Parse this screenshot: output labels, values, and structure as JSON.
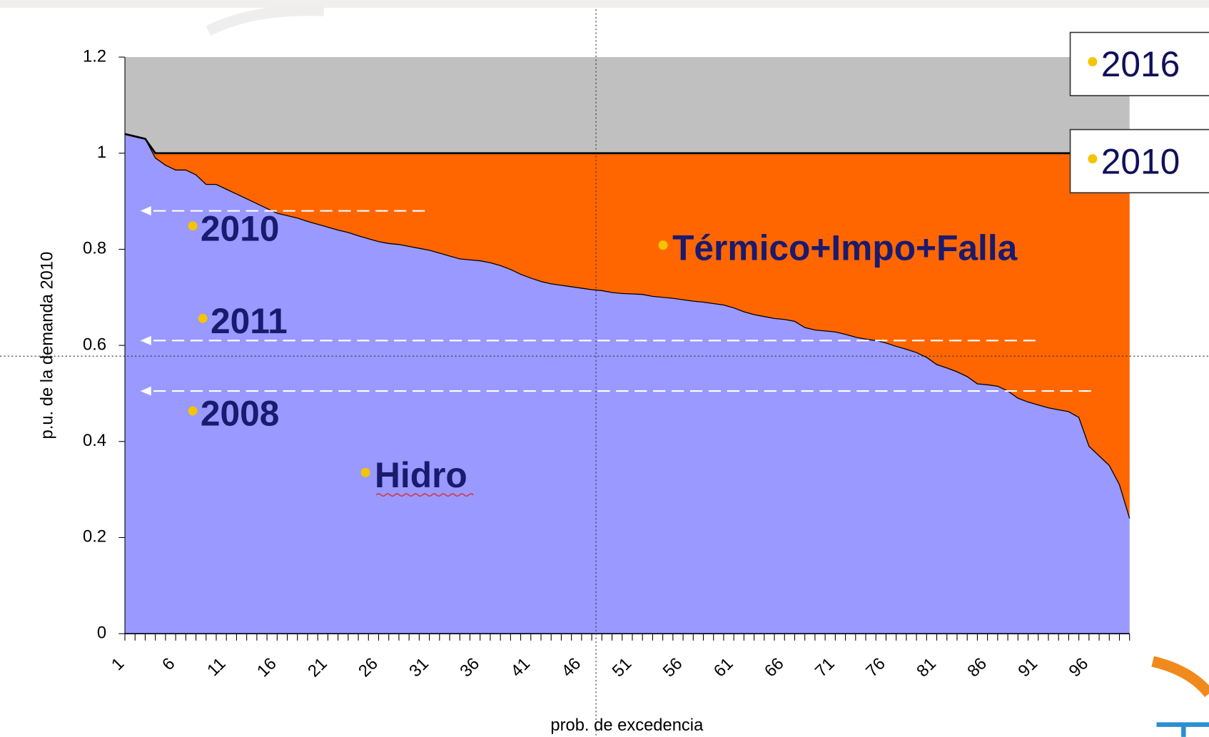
{
  "chart_data": {
    "type": "area",
    "y_label": "p.u. de la demanda 2010",
    "x_label": "prob. de excedencia",
    "categories": [
      1,
      null,
      null,
      null,
      null,
      6,
      null,
      null,
      null,
      null,
      11,
      null,
      null,
      null,
      null,
      16,
      null,
      null,
      null,
      null,
      21,
      null,
      null,
      null,
      null,
      26,
      null,
      null,
      null,
      null,
      31,
      null,
      null,
      null,
      null,
      36,
      null,
      null,
      null,
      null,
      41,
      null,
      null,
      null,
      null,
      46,
      null,
      null,
      null,
      null,
      51,
      null,
      null,
      null,
      null,
      56,
      null,
      null,
      null,
      null,
      61,
      null,
      null,
      null,
      null,
      66,
      null,
      null,
      null,
      null,
      71,
      null,
      null,
      null,
      null,
      76,
      null,
      null,
      null,
      null,
      81,
      null,
      null,
      null,
      null,
      86,
      null,
      null,
      null,
      null,
      91,
      null,
      null,
      null,
      null,
      96,
      null,
      null,
      null,
      null
    ],
    "series": [
      {
        "name": "Hidro",
        "color": "#9999ff",
        "values": [
          1.04,
          1.035,
          1.03,
          0.99,
          0.975,
          0.965,
          0.965,
          0.955,
          0.935,
          0.935,
          0.925,
          0.915,
          0.905,
          0.895,
          0.885,
          0.875,
          0.87,
          0.865,
          0.858,
          0.852,
          0.846,
          0.84,
          0.835,
          0.828,
          0.822,
          0.816,
          0.812,
          0.81,
          0.806,
          0.802,
          0.798,
          0.792,
          0.786,
          0.78,
          0.778,
          0.776,
          0.772,
          0.766,
          0.758,
          0.748,
          0.74,
          0.733,
          0.728,
          0.725,
          0.722,
          0.719,
          0.716,
          0.714,
          0.71,
          0.708,
          0.707,
          0.706,
          0.702,
          0.7,
          0.698,
          0.695,
          0.692,
          0.69,
          0.687,
          0.684,
          0.678,
          0.67,
          0.664,
          0.66,
          0.656,
          0.654,
          0.65,
          0.637,
          0.632,
          0.63,
          0.628,
          0.623,
          0.617,
          0.613,
          0.61,
          0.605,
          0.598,
          0.592,
          0.585,
          0.575,
          0.56,
          0.553,
          0.545,
          0.535,
          0.52,
          0.518,
          0.515,
          0.505,
          0.49,
          0.482,
          0.476,
          0.47,
          0.466,
          0.462,
          0.45,
          0.39,
          0.37,
          0.35,
          0.31,
          0.24
        ]
      },
      {
        "name": "Térmico+Impo+Falla",
        "color": "#ff6600",
        "values": [
          0,
          0,
          0,
          0.01,
          0.025,
          0.035,
          0.035,
          0.045,
          0.065,
          0.065,
          0.075,
          0.085,
          0.095,
          0.105,
          0.115,
          0.125,
          0.13,
          0.135,
          0.142,
          0.148,
          0.154,
          0.16,
          0.165,
          0.172,
          0.178,
          0.184,
          0.188,
          0.19,
          0.194,
          0.198,
          0.202,
          0.208,
          0.214,
          0.22,
          0.222,
          0.224,
          0.228,
          0.234,
          0.242,
          0.252,
          0.26,
          0.267,
          0.272,
          0.275,
          0.278,
          0.281,
          0.284,
          0.286,
          0.29,
          0.292,
          0.293,
          0.294,
          0.298,
          0.3,
          0.302,
          0.305,
          0.308,
          0.31,
          0.313,
          0.316,
          0.322,
          0.33,
          0.336,
          0.34,
          0.344,
          0.346,
          0.35,
          0.363,
          0.368,
          0.37,
          0.372,
          0.377,
          0.383,
          0.387,
          0.39,
          0.395,
          0.402,
          0.408,
          0.415,
          0.425,
          0.44,
          0.447,
          0.455,
          0.465,
          0.48,
          0.482,
          0.485,
          0.495,
          0.51,
          0.518,
          0.524,
          0.53,
          0.534,
          0.538,
          0.55,
          0.61,
          0.63,
          0.65,
          0.69,
          0.76
        ]
      }
    ],
    "background_color": "#c0c0c0",
    "annotations": [
      {
        "text": "2010",
        "y": 0.88
      },
      {
        "text": "2011",
        "y": 0.61
      },
      {
        "text": "2008",
        "y": 0.505
      }
    ],
    "boxes": [
      "2016",
      "2010"
    ],
    "ylim": [
      0,
      1.2
    ],
    "yticks": [
      0,
      0.2,
      0.4,
      0.6,
      0.8,
      1,
      1.2
    ]
  }
}
